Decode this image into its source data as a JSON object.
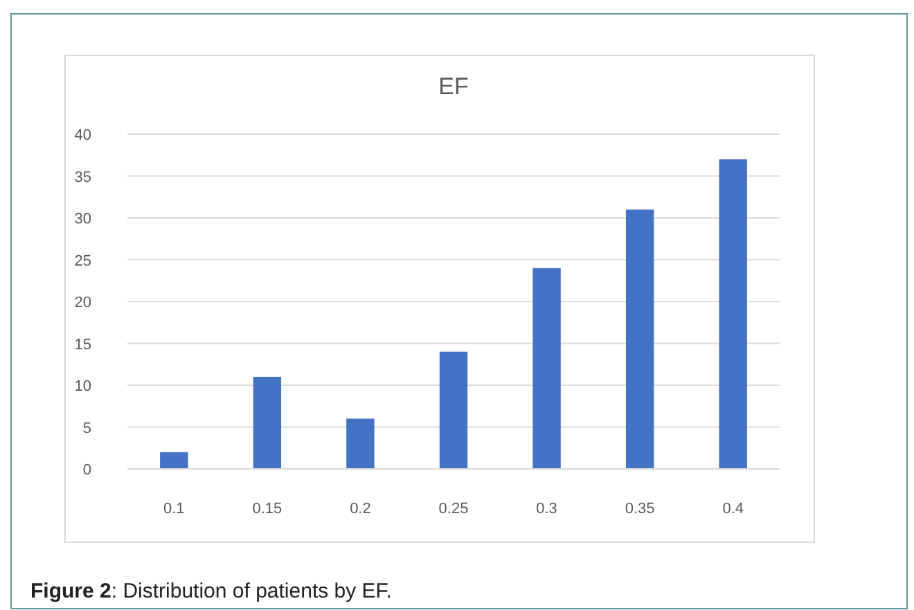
{
  "chart_data": {
    "type": "bar",
    "title": "EF",
    "categories": [
      "0.1",
      "0.15",
      "0.2",
      "0.25",
      "0.3",
      "0.35",
      "0.4"
    ],
    "values": [
      2,
      11,
      6,
      14,
      24,
      31,
      37
    ],
    "color": "#4472c4",
    "ylim": [
      0,
      40
    ],
    "yticks": [
      0,
      5,
      10,
      15,
      20,
      25,
      30,
      35,
      40
    ],
    "grid": "y",
    "annotations": [
      "Figure 2: Distribution of patients by EF."
    ]
  }
}
